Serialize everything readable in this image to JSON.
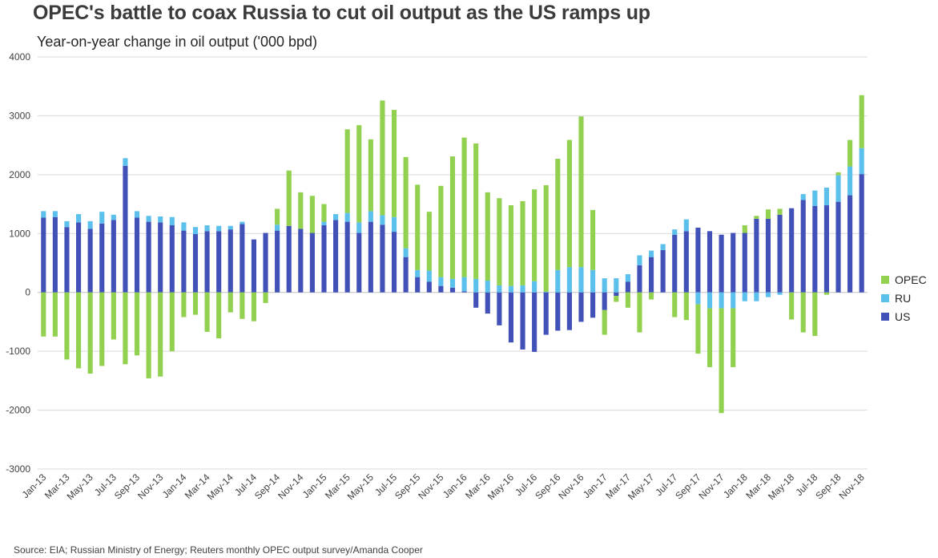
{
  "title": "OPEC's battle to coax Russia to cut oil output as the US ramps up",
  "subtitle": "Year-on-year change in oil output ('000 bpd)",
  "source": "Source: EIA; Russian Ministry of Energy; Reuters monthly OPEC output survey/Amanda Cooper",
  "legend": [
    {
      "label": "OPEC",
      "color": "#92d050"
    },
    {
      "label": "RU",
      "color": "#5bc0eb"
    },
    {
      "label": "US",
      "color": "#4251b8"
    }
  ],
  "chart_data": {
    "type": "bar",
    "stacked": true,
    "ylim": [
      -3000,
      4000
    ],
    "yticks": [
      -3000,
      -2000,
      -1000,
      0,
      1000,
      2000,
      3000,
      4000
    ],
    "grid": true,
    "legend_position": "right",
    "categories": [
      "Jan-13",
      "Feb-13",
      "Mar-13",
      "Apr-13",
      "May-13",
      "Jun-13",
      "Jul-13",
      "Aug-13",
      "Sep-13",
      "Oct-13",
      "Nov-13",
      "Dec-13",
      "Jan-14",
      "Feb-14",
      "Mar-14",
      "Apr-14",
      "May-14",
      "Jun-14",
      "Jul-14",
      "Aug-14",
      "Sep-14",
      "Oct-14",
      "Nov-14",
      "Dec-14",
      "Jan-15",
      "Feb-15",
      "Mar-15",
      "Apr-15",
      "May-15",
      "Jun-15",
      "Jul-15",
      "Aug-15",
      "Sep-15",
      "Oct-15",
      "Nov-15",
      "Dec-15",
      "Jan-16",
      "Feb-16",
      "Mar-16",
      "Apr-16",
      "May-16",
      "Jun-16",
      "Jul-16",
      "Aug-16",
      "Sep-16",
      "Oct-16",
      "Nov-16",
      "Dec-16",
      "Jan-17",
      "Feb-17",
      "Mar-17",
      "Apr-17",
      "May-17",
      "Jun-17",
      "Jul-17",
      "Aug-17",
      "Sep-17",
      "Oct-17",
      "Nov-17",
      "Dec-17",
      "Jan-18",
      "Feb-18",
      "Mar-18",
      "Apr-18",
      "May-18",
      "Jun-18",
      "Jul-18",
      "Aug-18",
      "Sep-18",
      "Oct-18",
      "Nov-18"
    ],
    "xticklabels": [
      "Jan-13",
      "",
      "Mar-13",
      "",
      "May-13",
      "",
      "Jul-13",
      "",
      "Sep-13",
      "",
      "Nov-13",
      "",
      "Jan-14",
      "",
      "Mar-14",
      "",
      "May-14",
      "",
      "Jul-14",
      "",
      "Sep-14",
      "",
      "Nov-14",
      "",
      "Jan-15",
      "",
      "Mar-15",
      "",
      "May-15",
      "",
      "Jul-15",
      "",
      "Sep-15",
      "",
      "Nov-15",
      "",
      "Jan-16",
      "",
      "Mar-16",
      "",
      "May-16",
      "",
      "Jul-16",
      "",
      "Sep-16",
      "",
      "Nov-16",
      "",
      "Jan-17",
      "",
      "Mar-17",
      "",
      "May-17",
      "",
      "Jul-17",
      "",
      "Sep-17",
      "",
      "Nov-17",
      "",
      "Jan-18",
      "",
      "Mar-18",
      "",
      "May-18",
      "",
      "Jul-18",
      "",
      "Sep-18",
      "",
      "Nov-18"
    ],
    "series": [
      {
        "name": "US",
        "values": [
          1270,
          1280,
          1110,
          1190,
          1080,
          1170,
          1230,
          2150,
          1270,
          1200,
          1190,
          1140,
          1050,
          990,
          1040,
          1040,
          1070,
          1160,
          900,
          1010,
          1050,
          1130,
          1080,
          1010,
          1140,
          1230,
          1200,
          1010,
          1200,
          1150,
          1030,
          600,
          260,
          180,
          110,
          80,
          20,
          -260,
          -360,
          -560,
          -850,
          -970,
          -1010,
          -720,
          -650,
          -640,
          -500,
          -430,
          -300,
          -60,
          180,
          460,
          600,
          720,
          980,
          1040,
          1100,
          1040,
          980,
          1010,
          1010,
          1250,
          1250,
          1320,
          1430,
          1570,
          1470,
          1480,
          1540,
          1650,
          2010
        ]
      },
      {
        "name": "RU",
        "values": [
          110,
          100,
          100,
          140,
          130,
          200,
          90,
          130,
          110,
          100,
          100,
          140,
          140,
          120,
          100,
          90,
          60,
          40,
          0,
          0,
          100,
          0,
          0,
          0,
          60,
          100,
          150,
          180,
          180,
          160,
          250,
          150,
          120,
          190,
          150,
          150,
          240,
          230,
          200,
          120,
          110,
          120,
          190,
          10,
          380,
          430,
          430,
          380,
          240,
          240,
          130,
          170,
          110,
          100,
          90,
          200,
          -200,
          -270,
          -270,
          -270,
          -150,
          -150,
          -80,
          -40,
          0,
          100,
          260,
          300,
          450,
          490,
          440
        ]
      },
      {
        "name": "OPEC",
        "values": [
          -750,
          -750,
          -1140,
          -1290,
          -1380,
          -1250,
          -800,
          -1220,
          -1070,
          -1460,
          -1430,
          -1000,
          -420,
          -380,
          -670,
          -780,
          -340,
          -450,
          -490,
          -180,
          270,
          940,
          620,
          630,
          300,
          0,
          1420,
          1650,
          1220,
          1950,
          1820,
          1550,
          1450,
          1000,
          1550,
          2080,
          2370,
          2300,
          1500,
          1480,
          1370,
          1430,
          1560,
          1810,
          1890,
          2160,
          2560,
          1020,
          -420,
          -100,
          -260,
          -680,
          -120,
          0,
          -420,
          -470,
          -840,
          -1000,
          -1780,
          -1000,
          130,
          50,
          160,
          100,
          -460,
          -680,
          -740,
          -40,
          50,
          450,
          900
        ]
      }
    ]
  }
}
